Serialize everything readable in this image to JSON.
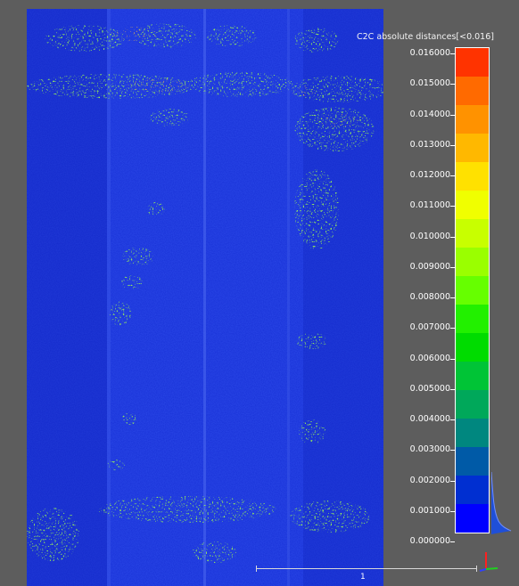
{
  "app": "point cloud distance viewer",
  "scalar_field": {
    "title": "C2C absolute distances[<0.016]",
    "ticks": [
      "0.016000",
      "0.015000",
      "0.014000",
      "0.013000",
      "0.012000",
      "0.011000",
      "0.010000",
      "0.009000",
      "0.008000",
      "0.007000",
      "0.006000",
      "0.005000",
      "0.004000",
      "0.003000",
      "0.002000",
      "0.001000",
      "0.000000"
    ],
    "colors": [
      "#ff3300",
      "#ff6a00",
      "#ff9200",
      "#ffb800",
      "#ffe100",
      "#f0ff00",
      "#c8ff00",
      "#9aff00",
      "#66ff00",
      "#22f000",
      "#00dc00",
      "#00c436",
      "#00a85a",
      "#00877f",
      "#005aa7",
      "#002fd1",
      "#0000ff"
    ]
  },
  "scale_bar": {
    "label": "1"
  },
  "colors": {
    "background": "#5d5d5d",
    "cloud_base": "#1428d8"
  }
}
